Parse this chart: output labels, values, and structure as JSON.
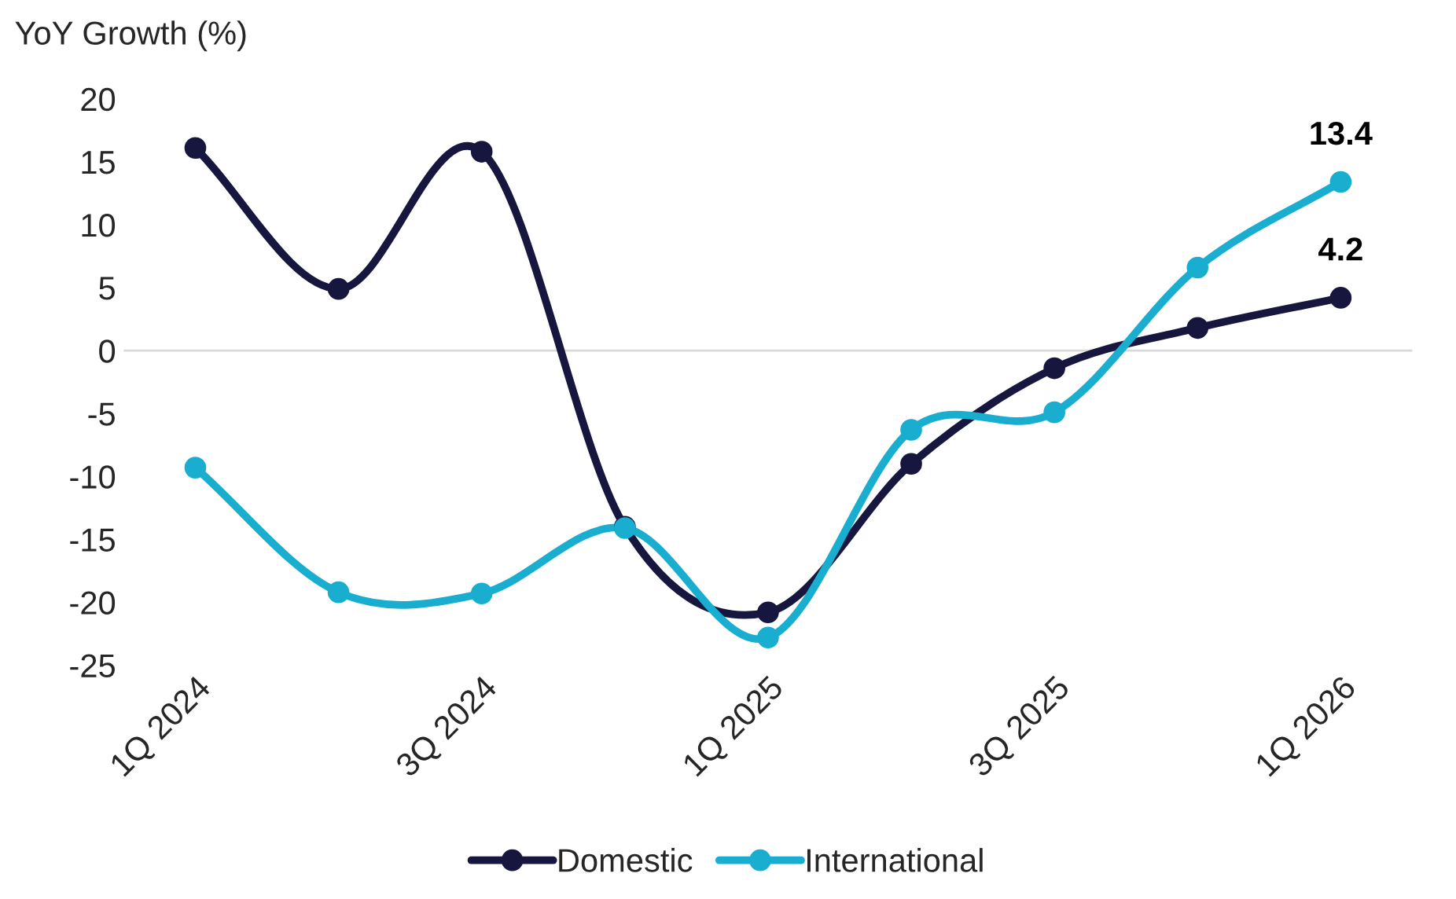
{
  "chart_data": {
    "type": "line",
    "ylabel": "YoY Growth (%)",
    "categories": [
      "1Q 2024",
      null,
      "3Q 2024",
      null,
      "1Q 2025",
      null,
      "3Q 2025",
      null,
      "1Q 2026"
    ],
    "series": [
      {
        "name": "Domestic",
        "color": "#16163e",
        "values": [
          16.1,
          4.9,
          15.8,
          -14.0,
          -20.8,
          -9.0,
          -1.4,
          1.8,
          4.2
        ],
        "value_labels": [
          null,
          null,
          null,
          null,
          null,
          null,
          null,
          null,
          "4.2"
        ]
      },
      {
        "name": "International",
        "color": "#19aed0",
        "values": [
          -9.3,
          -19.2,
          -19.3,
          -14.1,
          -22.8,
          -6.3,
          -4.9,
          6.6,
          13.4
        ],
        "value_labels": [
          null,
          null,
          null,
          null,
          null,
          null,
          null,
          null,
          "13.4"
        ]
      }
    ],
    "ylim": [
      -25,
      20
    ],
    "yticks": [
      -25,
      -20,
      -15,
      -10,
      -5,
      0,
      5,
      10,
      15,
      20
    ],
    "ref_lines": [
      {
        "axis": "y",
        "value": 0,
        "color": "#d9d9d9"
      }
    ],
    "marker": "circle",
    "line_style": "solid",
    "grid": false,
    "legend": "bottom"
  }
}
